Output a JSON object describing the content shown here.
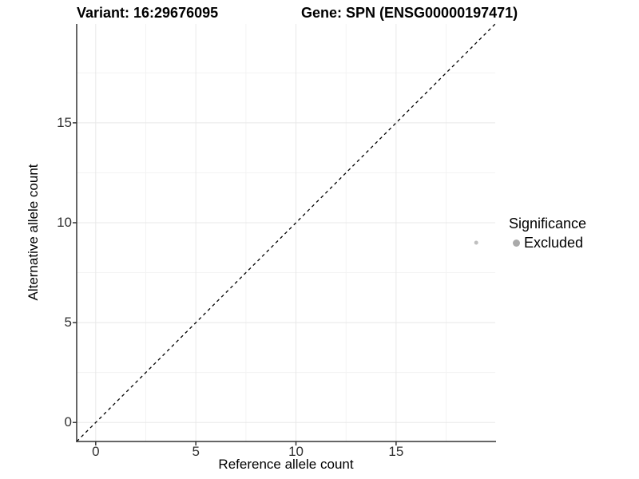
{
  "chart_data": {
    "type": "scatter",
    "title_left": "Variant: 16:29676095",
    "title_right": "Gene: SPN (ENSG00000197471)",
    "xlabel": "Reference allele count",
    "ylabel": "Alternative allele count",
    "xlim": [
      -0.95,
      19.95
    ],
    "ylim": [
      -0.95,
      19.95
    ],
    "xticks": [
      0,
      5,
      10,
      15
    ],
    "yticks": [
      0,
      5,
      10,
      15
    ],
    "minor_ticks": [
      2.5,
      7.5,
      12.5,
      17.5
    ],
    "grid": "on",
    "identity_line": {
      "style": "dashed",
      "from": [
        -0.95,
        -0.95
      ],
      "to": [
        19.95,
        19.95
      ],
      "color": "#000000"
    },
    "series": [
      {
        "name": "Excluded",
        "color": "#bfbfbf",
        "point_radius": 2.5,
        "points": [
          {
            "x": 19,
            "y": 9
          }
        ]
      }
    ],
    "legend": {
      "title": "Significance",
      "position": "right",
      "entries": [
        {
          "label": "Excluded",
          "color": "#aaaaaa",
          "swatch": "dot-icon"
        }
      ]
    },
    "colors": {
      "axis_line": "#333333",
      "tick_mark": "#333333",
      "tick_text": "#303030",
      "grid_major": "#e8e8e8",
      "grid_minor": "#f3f3f3",
      "background": "#ffffff"
    }
  }
}
